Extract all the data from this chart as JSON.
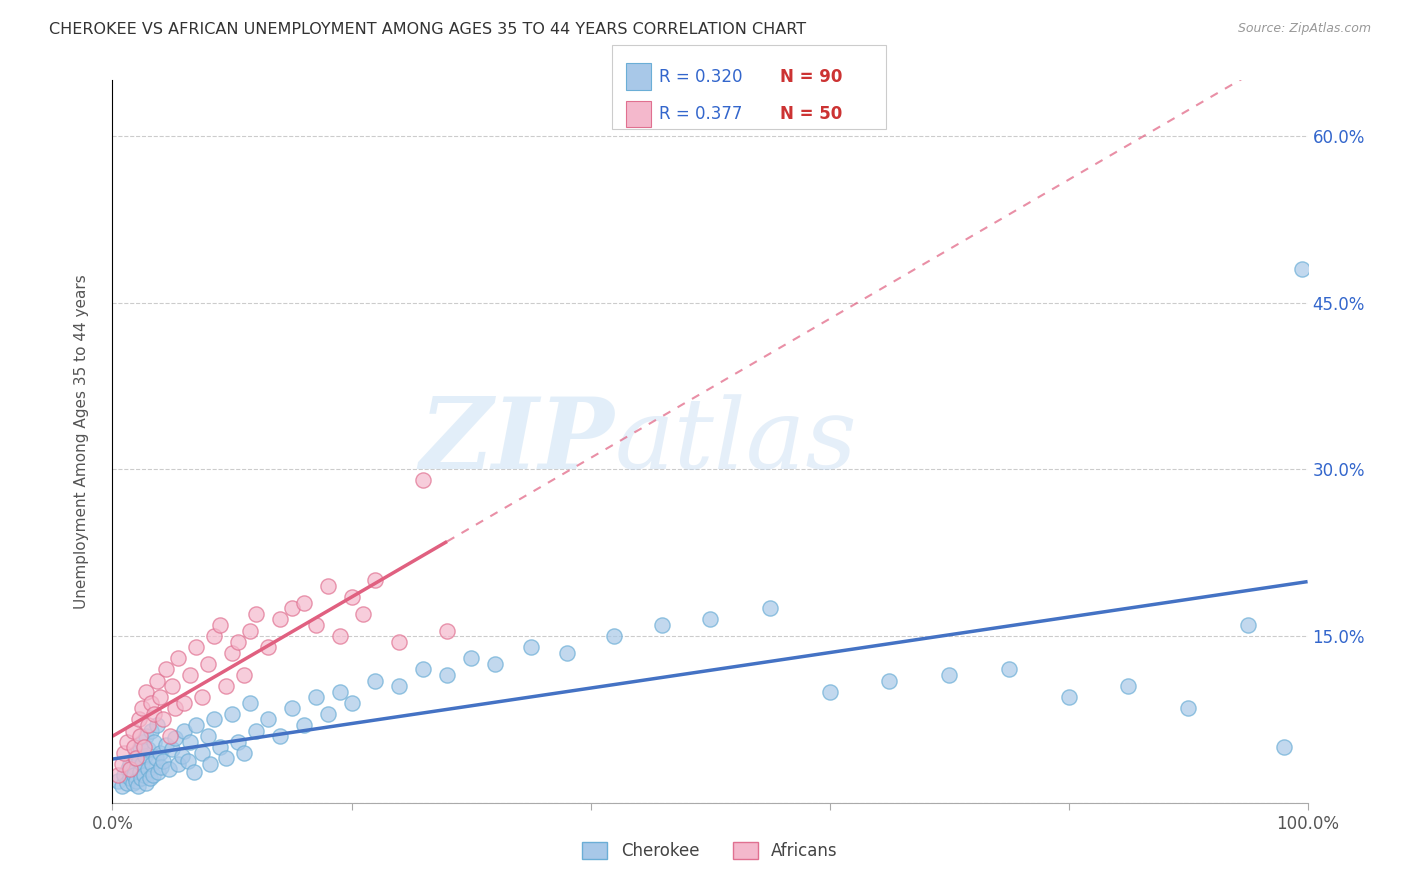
{
  "title": "CHEROKEE VS AFRICAN UNEMPLOYMENT AMONG AGES 35 TO 44 YEARS CORRELATION CHART",
  "source": "Source: ZipAtlas.com",
  "ylabel": "Unemployment Among Ages 35 to 44 years",
  "xlim": [
    0,
    1.0
  ],
  "ylim": [
    0,
    0.65
  ],
  "legend_label1": "Cherokee",
  "legend_label2": "Africans",
  "legend_R1": "R = 0.320",
  "legend_N1": "N = 90",
  "legend_R2": "R = 0.377",
  "legend_N2": "N = 50",
  "watermark_zip": "ZIP",
  "watermark_atlas": "atlas",
  "color_cherokee_fill": "#a8c8e8",
  "color_cherokee_edge": "#6baed6",
  "color_africans_fill": "#f4b8cc",
  "color_africans_edge": "#e07090",
  "color_line_cherokee": "#4472c4",
  "color_line_africans": "#e06080",
  "color_title": "#333333",
  "color_legend_R": "#3366cc",
  "color_legend_N": "#cc3333",
  "color_right_axis": "#3366cc",
  "background": "#ffffff",
  "cherokee_x": [
    0.005,
    0.008,
    0.01,
    0.012,
    0.013,
    0.015,
    0.015,
    0.016,
    0.017,
    0.018,
    0.018,
    0.019,
    0.02,
    0.02,
    0.021,
    0.022,
    0.023,
    0.023,
    0.024,
    0.025,
    0.025,
    0.026,
    0.027,
    0.028,
    0.028,
    0.03,
    0.03,
    0.031,
    0.032,
    0.033,
    0.034,
    0.035,
    0.036,
    0.037,
    0.038,
    0.04,
    0.041,
    0.042,
    0.045,
    0.047,
    0.05,
    0.052,
    0.055,
    0.058,
    0.06,
    0.063,
    0.065,
    0.068,
    0.07,
    0.075,
    0.08,
    0.082,
    0.085,
    0.09,
    0.095,
    0.1,
    0.105,
    0.11,
    0.115,
    0.12,
    0.13,
    0.14,
    0.15,
    0.16,
    0.17,
    0.18,
    0.19,
    0.2,
    0.22,
    0.24,
    0.26,
    0.28,
    0.3,
    0.32,
    0.35,
    0.38,
    0.42,
    0.46,
    0.5,
    0.55,
    0.6,
    0.65,
    0.7,
    0.75,
    0.8,
    0.85,
    0.9,
    0.95,
    0.98,
    0.995
  ],
  "cherokee_y": [
    0.02,
    0.015,
    0.025,
    0.018,
    0.03,
    0.022,
    0.035,
    0.028,
    0.018,
    0.032,
    0.025,
    0.04,
    0.02,
    0.045,
    0.015,
    0.038,
    0.028,
    0.05,
    0.022,
    0.035,
    0.055,
    0.025,
    0.042,
    0.018,
    0.06,
    0.03,
    0.048,
    0.022,
    0.065,
    0.035,
    0.025,
    0.055,
    0.04,
    0.07,
    0.028,
    0.045,
    0.032,
    0.038,
    0.052,
    0.03,
    0.048,
    0.058,
    0.035,
    0.042,
    0.065,
    0.038,
    0.055,
    0.028,
    0.07,
    0.045,
    0.06,
    0.035,
    0.075,
    0.05,
    0.04,
    0.08,
    0.055,
    0.045,
    0.09,
    0.065,
    0.075,
    0.06,
    0.085,
    0.07,
    0.095,
    0.08,
    0.1,
    0.09,
    0.11,
    0.105,
    0.12,
    0.115,
    0.13,
    0.125,
    0.14,
    0.135,
    0.15,
    0.16,
    0.165,
    0.175,
    0.1,
    0.11,
    0.115,
    0.12,
    0.095,
    0.105,
    0.085,
    0.16,
    0.05,
    0.48
  ],
  "africans_x": [
    0.005,
    0.008,
    0.01,
    0.012,
    0.015,
    0.017,
    0.018,
    0.02,
    0.022,
    0.023,
    0.025,
    0.026,
    0.028,
    0.03,
    0.032,
    0.035,
    0.037,
    0.04,
    0.042,
    0.045,
    0.048,
    0.05,
    0.052,
    0.055,
    0.06,
    0.065,
    0.07,
    0.075,
    0.08,
    0.085,
    0.09,
    0.095,
    0.1,
    0.105,
    0.11,
    0.115,
    0.12,
    0.13,
    0.14,
    0.15,
    0.16,
    0.17,
    0.18,
    0.19,
    0.2,
    0.21,
    0.22,
    0.24,
    0.26,
    0.28
  ],
  "africans_y": [
    0.025,
    0.035,
    0.045,
    0.055,
    0.03,
    0.065,
    0.05,
    0.04,
    0.075,
    0.06,
    0.085,
    0.05,
    0.1,
    0.07,
    0.09,
    0.08,
    0.11,
    0.095,
    0.075,
    0.12,
    0.06,
    0.105,
    0.085,
    0.13,
    0.09,
    0.115,
    0.14,
    0.095,
    0.125,
    0.15,
    0.16,
    0.105,
    0.135,
    0.145,
    0.115,
    0.155,
    0.17,
    0.14,
    0.165,
    0.175,
    0.18,
    0.16,
    0.195,
    0.15,
    0.185,
    0.17,
    0.2,
    0.145,
    0.29,
    0.155
  ]
}
